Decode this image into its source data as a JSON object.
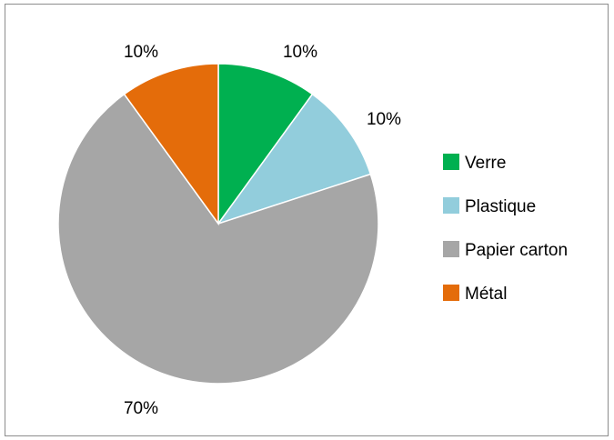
{
  "chart_data": {
    "type": "pie",
    "title": "",
    "start_angle_deg": 0,
    "direction": "clockwise",
    "slices": [
      {
        "label": "Verre",
        "value": 10,
        "display": "10%",
        "color": "#00b050"
      },
      {
        "label": "Plastique",
        "value": 10,
        "display": "10%",
        "color": "#92cddc"
      },
      {
        "label": "Papier carton",
        "value": 70,
        "display": "70%",
        "color": "#a6a6a6"
      },
      {
        "label": "Métal",
        "value": 10,
        "display": "10%",
        "color": "#e46c0a"
      }
    ],
    "legend_position": "right"
  }
}
